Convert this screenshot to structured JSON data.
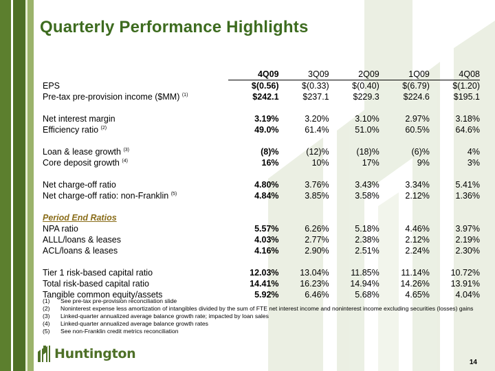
{
  "slide": {
    "title": "Quarterly Performance Highlights",
    "page_number": "14",
    "brand": "Huntington",
    "accent_color": "#3d6b1f",
    "section_color": "#8a6d1a"
  },
  "table": {
    "columns": [
      "4Q09",
      "3Q09",
      "2Q09",
      "1Q09",
      "4Q08"
    ],
    "rows": [
      {
        "label": "EPS",
        "note": "",
        "values": [
          "$(0.56)",
          "$(0.33)",
          "$(0.40)",
          "$(6.79)",
          "$(1.20)"
        ]
      },
      {
        "label": "Pre-tax pre-provision income ($MM)",
        "note": "(1)",
        "values": [
          "$242.1",
          "$237.1",
          "$229.3",
          "$224.6",
          "$195.1"
        ]
      },
      {
        "label": "Net interest margin",
        "note": "",
        "values": [
          "3.19%",
          "3.20%",
          "3.10%",
          "2.97%",
          "3.18%"
        ]
      },
      {
        "label": "Efficiency ratio",
        "note": "(2)",
        "values": [
          "49.0%",
          "61.4%",
          "51.0%",
          "60.5%",
          "64.6%"
        ]
      },
      {
        "label": "Loan & lease growth",
        "note": "(3)",
        "values": [
          "(8)%",
          "(12)%",
          "(18)%",
          "(6)%",
          "4%"
        ]
      },
      {
        "label": "Core deposit growth",
        "note": "(4)",
        "values": [
          "16%",
          "10%",
          "17%",
          "9%",
          "3%"
        ]
      },
      {
        "label": "Net charge-off ratio",
        "note": "",
        "values": [
          "4.80%",
          "3.76%",
          "3.43%",
          "3.34%",
          "5.41%"
        ]
      },
      {
        "label": "Net charge-off ratio: non-Franklin",
        "note": "(5)",
        "values": [
          "4.84%",
          "3.85%",
          "3.58%",
          "2.12%",
          "1.36%"
        ]
      },
      {
        "label": "NPA  ratio",
        "note": "",
        "values": [
          "5.57%",
          "6.26%",
          "5.18%",
          "4.46%",
          "3.97%"
        ]
      },
      {
        "label": "ALLL/loans & leases",
        "note": "",
        "values": [
          "4.03%",
          "2.77%",
          "2.38%",
          "2.12%",
          "2.19%"
        ]
      },
      {
        "label": "ACL/loans & leases",
        "note": "",
        "values": [
          "4.16%",
          "2.90%",
          "2.51%",
          "2.24%",
          "2.30%"
        ]
      },
      {
        "label": "Tier 1 risk-based capital ratio",
        "note": "",
        "values": [
          "12.03%",
          "13.04%",
          "11.85%",
          "11.14%",
          "10.72%"
        ]
      },
      {
        "label": "Total risk-based capital ratio",
        "note": "",
        "values": [
          "14.41%",
          "16.23%",
          "14.94%",
          "14.26%",
          "13.91%"
        ]
      },
      {
        "label": "Tangible common equity/assets",
        "note": "",
        "values": [
          "5.92%",
          "6.46%",
          "5.68%",
          "4.65%",
          "4.04%"
        ]
      }
    ],
    "section_title": "Period End Ratios"
  },
  "footnotes": [
    {
      "n": "(1)",
      "text": "See pre-tax pre-provision reconciliation slide"
    },
    {
      "n": "(2)",
      "text": "Noninterest expense less amortization of intangibles divided by the sum of FTE net interest income and noninterest income excluding securities (losses) gains"
    },
    {
      "n": "(3)",
      "text": "Linked-quarter annualized average balance growth rate; impacted by loan sales"
    },
    {
      "n": "(4)",
      "text": "Linked-quarter annualized average balance growth rates"
    },
    {
      "n": "(5)",
      "text": "See non-Franklin credit metrics reconciliation"
    }
  ],
  "icons": {
    "logo": "huntington-logo-icon",
    "watermark": "huntington-watermark-icon"
  }
}
